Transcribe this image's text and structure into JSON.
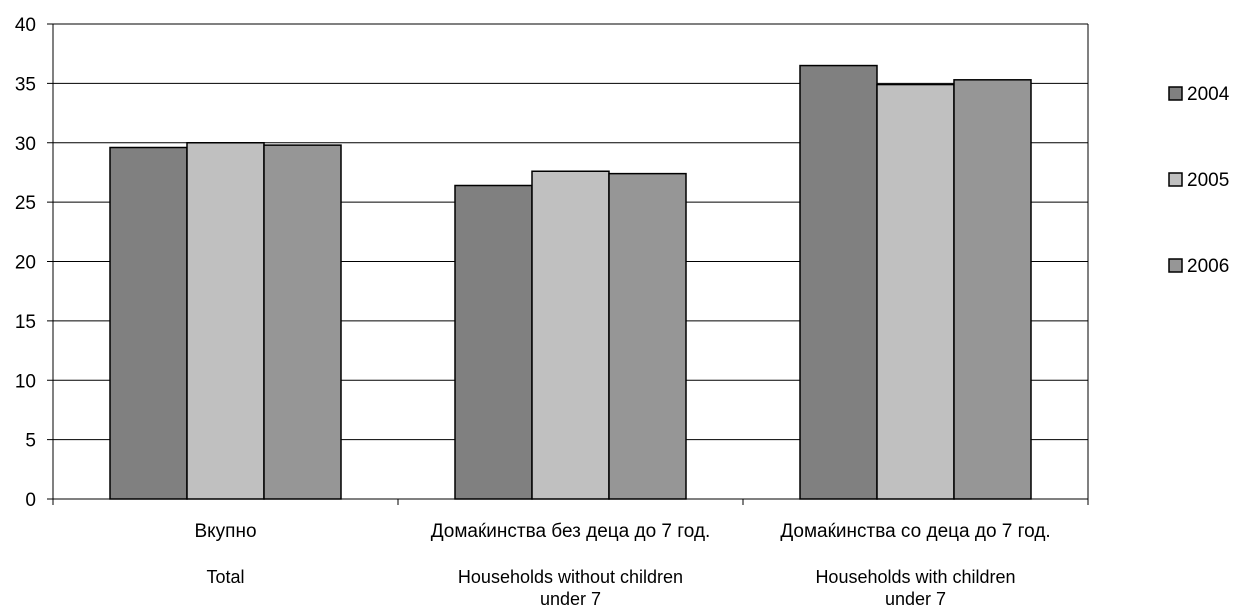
{
  "chart_data": {
    "type": "bar",
    "categories": [
      {
        "line1": "Вкупно",
        "line2": "Total",
        "line3": ""
      },
      {
        "line1": "Домаќинства без деца до 7 год.",
        "line2": "Households without children",
        "line3": "under 7"
      },
      {
        "line1": "Домаќинства со деца до 7 год.",
        "line2": "Households with children",
        "line3": "under 7"
      }
    ],
    "series": [
      {
        "name": "2004",
        "color": "#808080",
        "values": [
          29.6,
          26.4,
          36.5
        ]
      },
      {
        "name": "2005",
        "color": "#c0c0c0",
        "values": [
          30.0,
          27.6,
          34.9
        ]
      },
      {
        "name": "2006",
        "color": "#969696",
        "values": [
          29.8,
          27.4,
          35.3
        ]
      }
    ],
    "ylim": [
      0,
      40
    ],
    "yticks": [
      "0",
      "5",
      "10",
      "15",
      "20",
      "25",
      "30",
      "35",
      "40"
    ],
    "grid": true,
    "legend_position": "right"
  }
}
